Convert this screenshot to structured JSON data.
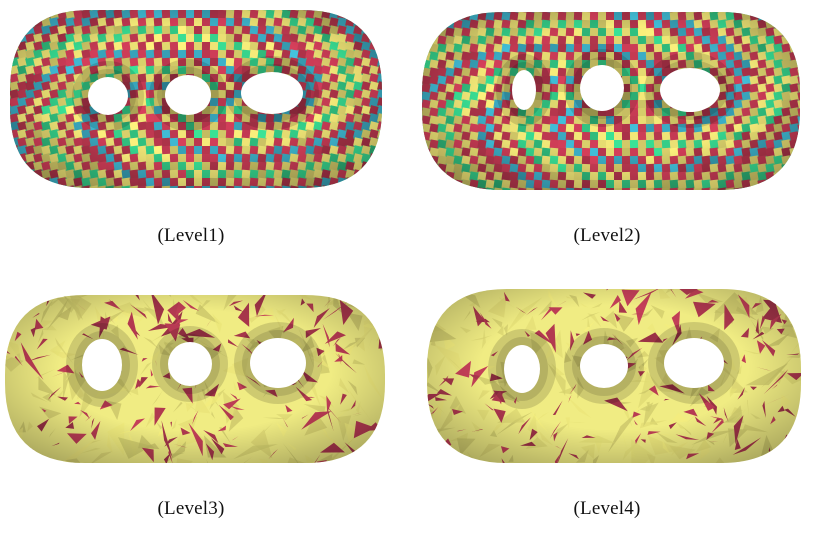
{
  "figure": {
    "panels": [
      {
        "caption": "(Level1)",
        "shading": "checkerboard-quad"
      },
      {
        "caption": "(Level2)",
        "shading": "checkerboard-quad"
      },
      {
        "caption": "(Level3)",
        "shading": "triangle-mesh"
      },
      {
        "caption": "(Level4)",
        "shading": "triangle-mesh"
      }
    ],
    "palettes": {
      "quad": [
        "#c43a53",
        "#35d08a",
        "#e7dd72",
        "#3db1c9"
      ],
      "triangle": [
        "#f0ec83",
        "#b43a51",
        "#d8d36f"
      ]
    }
  }
}
